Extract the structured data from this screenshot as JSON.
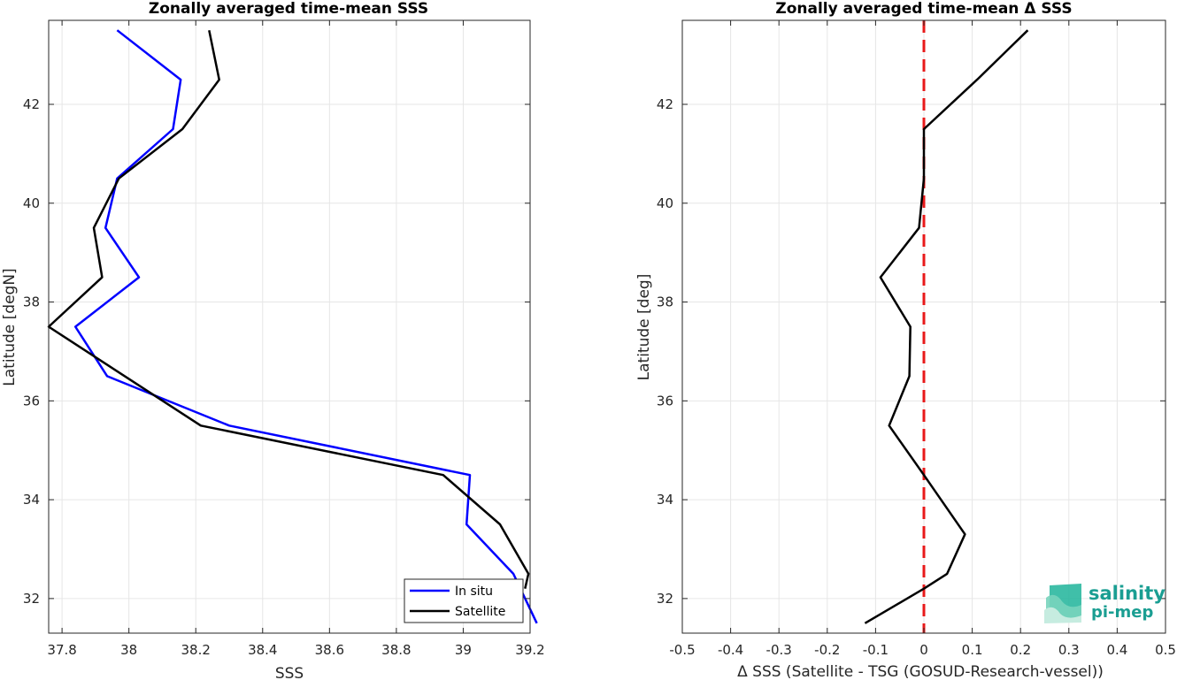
{
  "chart_data": [
    {
      "type": "line",
      "title": "Zonally averaged time-mean SSS",
      "xlabel": "SSS",
      "ylabel": "Latitude [degN]",
      "xlim": [
        37.76,
        39.2
      ],
      "ylim": [
        31.3,
        43.7
      ],
      "xticks": [
        "37.8",
        "38",
        "38.2",
        "38.4",
        "38.6",
        "38.8",
        "39",
        "39.2"
      ],
      "yticks": [
        "32",
        "34",
        "36",
        "38",
        "40",
        "42"
      ],
      "grid": true,
      "legend_location": "bottom-right",
      "series": [
        {
          "name": "In situ",
          "color": "#0000ff",
          "x": [
            37.965,
            38.155,
            38.132,
            37.965,
            37.93,
            38.03,
            37.84,
            37.935,
            38.3,
            39.02,
            39.01,
            39.15,
            39.22
          ],
          "y": [
            43.5,
            42.5,
            41.5,
            40.5,
            39.5,
            38.5,
            37.5,
            36.5,
            35.5,
            34.5,
            33.5,
            32.5,
            31.5
          ]
        },
        {
          "name": "Satellite",
          "color": "#000000",
          "x": [
            38.24,
            38.27,
            38.16,
            37.97,
            37.895,
            37.92,
            37.76,
            38.215,
            38.94,
            39.11,
            39.195,
            39.185
          ],
          "y": [
            43.5,
            42.5,
            41.5,
            40.5,
            39.5,
            38.5,
            37.5,
            35.5,
            34.5,
            33.5,
            32.5,
            32.2
          ]
        }
      ]
    },
    {
      "type": "line",
      "title": "Zonally averaged time-mean Δ SSS",
      "xlabel": "Δ SSS (Satellite - TSG (GOSUD-Research-vessel))",
      "ylabel": "Latitude [deg]",
      "xlim": [
        -0.5,
        0.5
      ],
      "ylim": [
        31.3,
        43.7
      ],
      "xticks": [
        "-0.5",
        "-0.4",
        "-0.3",
        "-0.2",
        "-0.1",
        "0",
        "0.1",
        "0.2",
        "0.3",
        "0.4",
        "0.5"
      ],
      "yticks": [
        "32",
        "34",
        "36",
        "38",
        "40",
        "42"
      ],
      "grid": true,
      "reference_line": {
        "x": 0,
        "color": "#e8191a",
        "style": "dashed"
      },
      "series": [
        {
          "color": "#000000",
          "x": [
            0.215,
            0.11,
            0.0,
            0.0,
            0.0,
            -0.01,
            -0.09,
            -0.028,
            -0.03,
            -0.072,
            0.0,
            0.085,
            0.048,
            0.0,
            -0.122
          ],
          "y": [
            43.5,
            42.5,
            41.5,
            41.3,
            40.5,
            39.5,
            38.5,
            37.5,
            36.5,
            35.5,
            34.5,
            33.3,
            32.5,
            32.2,
            31.5
          ]
        }
      ]
    }
  ],
  "logo": {
    "line1": "salinity",
    "line2": "pi-mep"
  }
}
